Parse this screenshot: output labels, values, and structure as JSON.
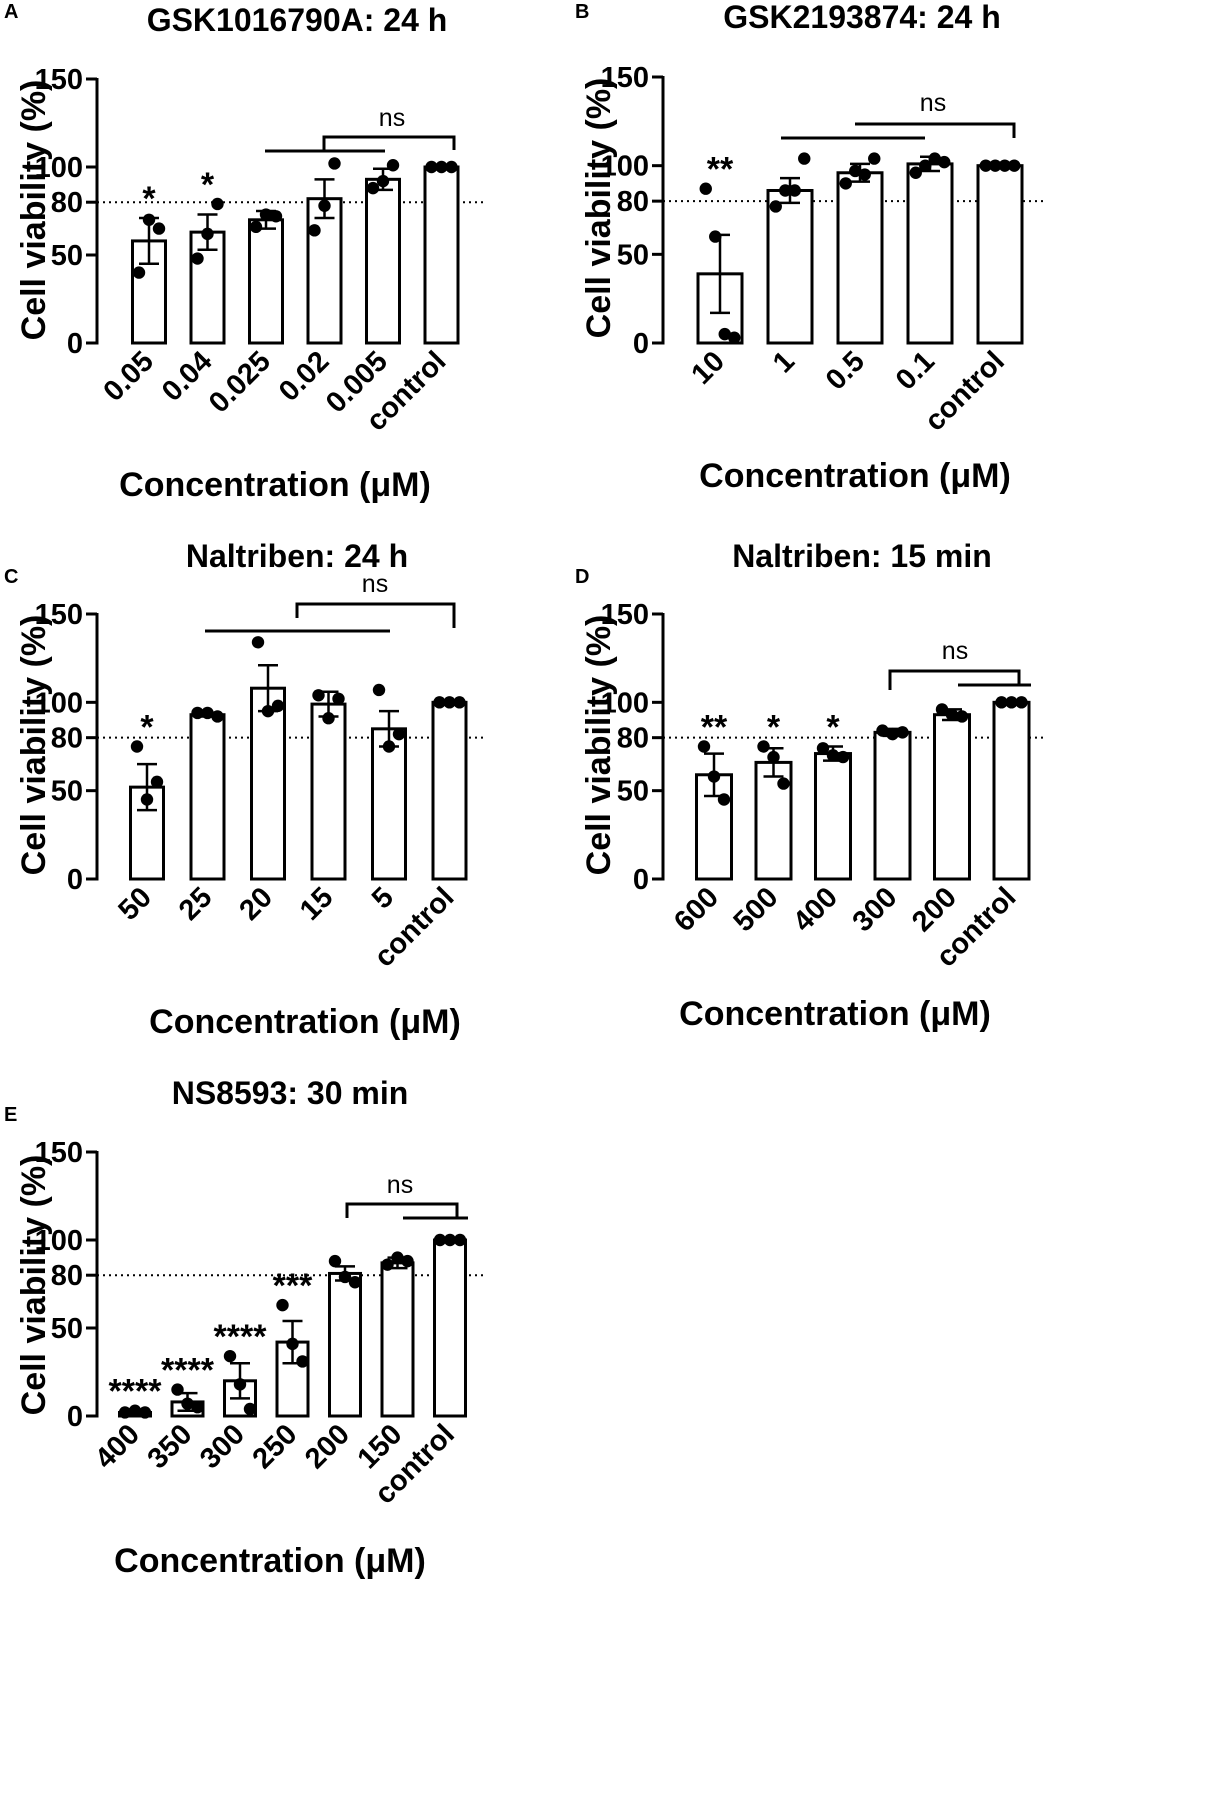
{
  "chart_data": [
    {
      "panel_label": "A",
      "type": "bar",
      "title": "GSK1016790A: 24 h",
      "xlabel": "Concentration (μM)",
      "ylabel": "Cell viability (%)",
      "ylim": [
        0,
        150
      ],
      "yticks": [
        "0",
        "50",
        "80",
        "100",
        "150"
      ],
      "reference_line": 80,
      "categories": [
        "0.05",
        "0.04",
        "0.025",
        "0.02",
        "0.005",
        "control"
      ],
      "values": [
        58,
        63,
        70,
        82,
        93,
        100
      ],
      "errors": [
        13,
        10,
        5,
        11,
        6,
        0
      ],
      "points": [
        [
          40,
          70,
          65
        ],
        [
          48,
          62,
          79
        ],
        [
          66,
          73,
          72
        ],
        [
          64,
          78,
          102
        ],
        [
          88,
          92,
          101
        ],
        [
          100,
          100,
          100
        ]
      ],
      "annotations": [
        "*",
        "*",
        "",
        "",
        "",
        ""
      ],
      "ns_label": "ns"
    },
    {
      "panel_label": "B",
      "type": "bar",
      "title": "GSK2193874: 24 h",
      "xlabel": "Concentration (μM)",
      "ylabel": "Cell viability (%)",
      "ylim": [
        0,
        150
      ],
      "yticks": [
        "0",
        "50",
        "80",
        "100",
        "150"
      ],
      "reference_line": 80,
      "categories": [
        "10",
        "1",
        "0.5",
        "0.1",
        "control"
      ],
      "values": [
        39,
        86,
        96,
        101,
        100
      ],
      "errors": [
        22,
        7,
        5,
        4,
        0
      ],
      "points": [
        [
          87,
          60,
          5,
          3
        ],
        [
          77,
          86,
          86,
          104
        ],
        [
          90,
          97,
          95,
          104
        ],
        [
          96,
          100,
          104,
          102
        ],
        [
          100,
          100,
          100,
          100
        ]
      ],
      "annotations": [
        "**",
        "",
        "",
        "",
        ""
      ],
      "ns_label": "ns"
    },
    {
      "panel_label": "C",
      "type": "bar",
      "title": "Naltriben: 24 h",
      "xlabel": "Concentration (μM)",
      "ylabel": "Cell viability (%)",
      "ylim": [
        0,
        150
      ],
      "yticks": [
        "0",
        "50",
        "80",
        "100",
        "150"
      ],
      "reference_line": 80,
      "categories": [
        "50",
        "25",
        "20",
        "15",
        "5",
        "control"
      ],
      "values": [
        52,
        93,
        108,
        99,
        85,
        100
      ],
      "errors": [
        13,
        1,
        13,
        7,
        10,
        0
      ],
      "points": [
        [
          75,
          45,
          55
        ],
        [
          94,
          94,
          92
        ],
        [
          134,
          95,
          98
        ],
        [
          104,
          91,
          102
        ],
        [
          107,
          75,
          82
        ],
        [
          100,
          100,
          100
        ]
      ],
      "annotations": [
        "*",
        "",
        "",
        "",
        "",
        ""
      ],
      "ns_label": "ns"
    },
    {
      "panel_label": "D",
      "type": "bar",
      "title": "Naltriben: 15 min",
      "xlabel": "Concentration (μM)",
      "ylabel": "Cell viability (%)",
      "ylim": [
        0,
        150
      ],
      "yticks": [
        "0",
        "50",
        "80",
        "100",
        "150"
      ],
      "reference_line": 80,
      "categories": [
        "600",
        "500",
        "400",
        "300",
        "200",
        "control"
      ],
      "values": [
        59,
        66,
        71,
        83,
        93,
        100
      ],
      "errors": [
        12,
        8,
        4,
        2,
        3,
        0
      ],
      "points": [
        [
          75,
          58,
          45
        ],
        [
          75,
          69,
          54
        ],
        [
          74,
          70,
          69
        ],
        [
          84,
          82,
          83
        ],
        [
          96,
          93,
          92
        ],
        [
          100,
          100,
          100
        ]
      ],
      "annotations": [
        "**",
        "*",
        "*",
        "",
        "",
        ""
      ],
      "ns_label": "ns"
    },
    {
      "panel_label": "E",
      "type": "bar",
      "title": "NS8593: 30 min",
      "xlabel": "Concentration (μM)",
      "ylabel": "Cell viability (%)",
      "ylim": [
        0,
        150
      ],
      "yticks": [
        "0",
        "50",
        "80",
        "100",
        "150"
      ],
      "reference_line": 80,
      "categories": [
        "400",
        "350",
        "300",
        "250",
        "200",
        "150",
        "control"
      ],
      "values": [
        2,
        8,
        20,
        42,
        81,
        87,
        100
      ],
      "errors": [
        0,
        5,
        10,
        12,
        4,
        3,
        0
      ],
      "points": [
        [
          2,
          3,
          2
        ],
        [
          15,
          7,
          5
        ],
        [
          34,
          18,
          4
        ],
        [
          63,
          41,
          31
        ],
        [
          88,
          79,
          76
        ],
        [
          86,
          90,
          88
        ],
        [
          100,
          100,
          100
        ]
      ],
      "annotations": [
        "****",
        "****",
        "****",
        "***",
        "",
        "",
        ""
      ],
      "ns_label": "ns"
    }
  ]
}
